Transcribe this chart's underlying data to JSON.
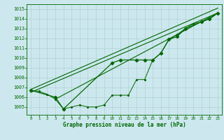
{
  "xlabel": "Graphe pression niveau de la mer (hPa)",
  "bg_color": "#cce8ee",
  "grid_color": "#aacccc",
  "line_color": "#006600",
  "xlim": [
    -0.5,
    23.5
  ],
  "ylim": [
    1004.2,
    1015.5
  ],
  "yticks": [
    1005,
    1006,
    1007,
    1008,
    1009,
    1010,
    1011,
    1012,
    1013,
    1014,
    1015
  ],
  "xticks": [
    0,
    1,
    2,
    3,
    4,
    5,
    6,
    7,
    8,
    9,
    10,
    11,
    12,
    13,
    14,
    15,
    16,
    17,
    18,
    19,
    20,
    21,
    22,
    23
  ],
  "jagged": {
    "x": [
      0,
      1,
      2,
      3,
      4,
      5,
      6,
      7,
      8,
      9,
      10,
      11,
      12,
      13,
      14,
      15,
      16,
      17,
      18,
      19,
      20,
      21,
      22,
      23
    ],
    "y": [
      1006.7,
      1006.6,
      1006.3,
      1005.8,
      1004.8,
      1005.0,
      1005.2,
      1005.0,
      1005.0,
      1005.2,
      1006.2,
      1006.2,
      1006.2,
      1007.8,
      1007.8,
      1009.8,
      1010.5,
      1011.9,
      1012.4,
      1013.0,
      1013.5,
      1013.7,
      1014.0,
      1014.6
    ]
  },
  "trend1": {
    "x": [
      0,
      23
    ],
    "y": [
      1006.5,
      1014.6
    ]
  },
  "trend2": {
    "x": [
      0,
      23
    ],
    "y": [
      1006.8,
      1015.1
    ]
  },
  "trend3": {
    "x": [
      3,
      23
    ],
    "y": [
      1005.8,
      1014.6
    ]
  },
  "curve": {
    "x": [
      0,
      3,
      4,
      10,
      11,
      13,
      14,
      15,
      16,
      17,
      18,
      19,
      21,
      22,
      23
    ],
    "y": [
      1006.7,
      1006.0,
      1004.8,
      1009.5,
      1009.8,
      1009.8,
      1009.8,
      1009.8,
      1010.5,
      1011.9,
      1012.2,
      1013.0,
      1013.7,
      1014.0,
      1014.6
    ]
  }
}
